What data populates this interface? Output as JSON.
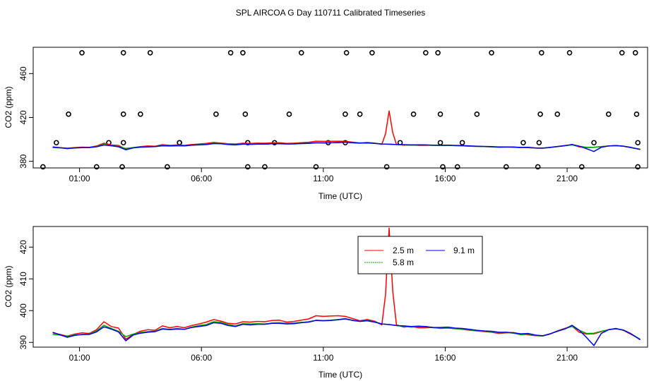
{
  "title": "SPL AIRCOA G  Day 110711  Calibrated Timeseries",
  "colors": {
    "red": "#ff0000",
    "green": "#00aa00",
    "blue": "#0000ee",
    "axis": "#000000"
  },
  "chart_data": [
    {
      "type": "scatter+line",
      "xlabel": "Time (UTC)",
      "ylabel": "CO2 (ppm)",
      "xlim": [
        -0.9,
        24.3
      ],
      "ylim": [
        374,
        484
      ],
      "x_ticks": [
        1,
        6,
        11,
        16,
        21
      ],
      "x_tick_labels": [
        "01:00",
        "06:00",
        "11:00",
        "16:00",
        "21:00"
      ],
      "y_ticks": [
        380,
        420,
        460
      ],
      "y_tick_labels": [
        "380",
        "420",
        "460"
      ],
      "circles": [
        [
          -0.5,
          375
        ],
        [
          0.05,
          397
        ],
        [
          0.55,
          423
        ],
        [
          1.1,
          479
        ],
        [
          1.7,
          375
        ],
        [
          2.2,
          397
        ],
        [
          2.75,
          375
        ],
        [
          2.8,
          397
        ],
        [
          2.8,
          423
        ],
        [
          2.8,
          479
        ],
        [
          3.5,
          423
        ],
        [
          3.9,
          479
        ],
        [
          4.6,
          375
        ],
        [
          5.1,
          397
        ],
        [
          5.1,
          397
        ],
        [
          6.6,
          423
        ],
        [
          7.2,
          479
        ],
        [
          7.7,
          479
        ],
        [
          7.8,
          423
        ],
        [
          7.9,
          375
        ],
        [
          7.9,
          397
        ],
        [
          8.6,
          375
        ],
        [
          9.0,
          397
        ],
        [
          9.6,
          423
        ],
        [
          10.1,
          479
        ],
        [
          10.7,
          375
        ],
        [
          11.2,
          397
        ],
        [
          11.9,
          397
        ],
        [
          11.9,
          423
        ],
        [
          11.95,
          479
        ],
        [
          12.5,
          423
        ],
        [
          13.0,
          479
        ],
        [
          13.6,
          375
        ],
        [
          14.15,
          397
        ],
        [
          14.7,
          423
        ],
        [
          15.2,
          479
        ],
        [
          15.7,
          479
        ],
        [
          15.8,
          423
        ],
        [
          15.8,
          397
        ],
        [
          15.9,
          375
        ],
        [
          16.5,
          375
        ],
        [
          16.7,
          397
        ],
        [
          17.3,
          423
        ],
        [
          17.9,
          479
        ],
        [
          18.5,
          375
        ],
        [
          19.2,
          397
        ],
        [
          19.8,
          375
        ],
        [
          19.85,
          397
        ],
        [
          19.9,
          423
        ],
        [
          19.95,
          479
        ],
        [
          20.6,
          423
        ],
        [
          21.1,
          479
        ],
        [
          21.6,
          375
        ],
        [
          22.1,
          397
        ],
        [
          22.7,
          423
        ],
        [
          23.25,
          479
        ],
        [
          23.8,
          479
        ],
        [
          23.85,
          423
        ],
        [
          23.9,
          397
        ],
        [
          23.9,
          375
        ]
      ]
    },
    {
      "type": "line",
      "xlabel": "Time (UTC)",
      "ylabel": "CO2 (ppm)",
      "xlim": [
        -0.9,
        24.3
      ],
      "ylim": [
        388.5,
        426.5
      ],
      "x_ticks": [
        1,
        6,
        11,
        16,
        21
      ],
      "x_tick_labels": [
        "01:00",
        "06:00",
        "11:00",
        "16:00",
        "21:00"
      ],
      "y_ticks": [
        390,
        400,
        410,
        420
      ],
      "y_tick_labels": [
        "390",
        "400",
        "410",
        "420"
      ],
      "legend": {
        "position": "top-center",
        "entries": [
          "2.5 m",
          "9.1 m",
          "5.8 m"
        ]
      }
    }
  ],
  "series": [
    {
      "name": "2.5 m",
      "color": "#ff0000",
      "x": [
        -0.1,
        0.2,
        0.5,
        0.8,
        1.1,
        1.4,
        1.7,
        2.0,
        2.3,
        2.6,
        2.9,
        3.2,
        3.5,
        3.8,
        4.1,
        4.4,
        4.7,
        5.0,
        5.3,
        5.6,
        5.9,
        6.2,
        6.5,
        6.8,
        7.1,
        7.4,
        7.7,
        8.0,
        8.3,
        8.6,
        8.9,
        9.2,
        9.5,
        9.8,
        10.1,
        10.4,
        10.7,
        11.0,
        11.3,
        11.6,
        11.9,
        12.2,
        12.5,
        12.8,
        13.1,
        13.4,
        13.55,
        13.7,
        13.85,
        14.0,
        14.3,
        14.6,
        14.9,
        15.2,
        15.5,
        15.8,
        16.1,
        16.4,
        16.7,
        17.0,
        17.3,
        17.6,
        17.9,
        18.2,
        18.5,
        18.8,
        19.1,
        19.4,
        19.7,
        20.0,
        20.3,
        20.6,
        20.9,
        21.2,
        21.5,
        21.8,
        22.1,
        22.4,
        22.7,
        23.0,
        23.3,
        23.6,
        24.0
      ],
      "y": [
        393,
        392.5,
        392,
        392.6,
        393,
        392.8,
        394,
        396.5,
        395,
        394.5,
        391,
        392.5,
        393.5,
        394,
        393.8,
        395.2,
        394.6,
        395,
        394.6,
        395.3,
        395.8,
        396.4,
        397.2,
        396.7,
        396,
        395.8,
        396.5,
        396.4,
        396.6,
        396.5,
        396.9,
        397,
        396.4,
        396.6,
        397,
        397.4,
        398.4,
        398.2,
        398.3,
        398.4,
        398.2,
        397.5,
        396.8,
        397.2,
        396.7,
        395.5,
        405,
        426,
        406,
        395.5,
        394.8,
        395,
        394.6,
        394.6,
        394.7,
        394.4,
        394.5,
        394.3,
        394.1,
        393.8,
        393.6,
        393.4,
        393.2,
        392.8,
        393,
        393.1,
        392.6,
        392.4,
        392.1,
        392,
        392.6,
        393.6,
        394.4,
        395.1,
        393.2,
        392.6,
        392.7,
        393.4,
        394,
        394.4,
        393.8,
        392.6,
        391
      ]
    },
    {
      "name": "5.8 m",
      "color": "#00aa00",
      "x": [
        -0.1,
        0.2,
        0.5,
        0.8,
        1.1,
        1.4,
        1.7,
        2.0,
        2.3,
        2.6,
        2.9,
        3.2,
        3.5,
        3.8,
        4.1,
        4.4,
        4.7,
        5.0,
        5.3,
        5.6,
        5.9,
        6.2,
        6.5,
        6.8,
        7.1,
        7.4,
        7.7,
        8.0,
        8.3,
        8.6,
        8.9,
        9.2,
        9.5,
        9.8,
        10.1,
        10.4,
        10.7,
        11.0,
        11.3,
        11.6,
        11.9,
        12.2,
        12.5,
        12.8,
        13.1,
        13.4,
        13.7,
        14.0,
        14.3,
        14.6,
        14.9,
        15.2,
        15.5,
        15.8,
        16.1,
        16.4,
        16.7,
        17.0,
        17.3,
        17.6,
        17.9,
        18.2,
        18.5,
        18.8,
        19.1,
        19.4,
        19.7,
        20.0,
        20.3,
        20.6,
        20.9,
        21.2,
        21.5,
        21.8,
        22.1,
        22.4,
        22.7,
        23.0,
        23.3,
        23.6,
        24.0
      ],
      "y": [
        392.5,
        392.3,
        391.8,
        392.4,
        392.4,
        392.6,
        393.6,
        395.4,
        394.4,
        393.5,
        391.8,
        392.6,
        393.1,
        393.4,
        393.5,
        394.4,
        394.1,
        394.4,
        394.1,
        394.8,
        395.3,
        395.6,
        396.5,
        396.3,
        395.6,
        395.2,
        395.9,
        395.8,
        395.9,
        395.8,
        396.1,
        396.2,
        396,
        396.1,
        396.3,
        396.5,
        397,
        396.9,
        397,
        397.2,
        397.5,
        397,
        396.6,
        396.9,
        396.5,
        395.8,
        395.6,
        395.3,
        395,
        394.8,
        394.9,
        394.9,
        394.6,
        394.5,
        394.6,
        394.3,
        394.2,
        393.9,
        393.6,
        393.5,
        393.3,
        393,
        393.1,
        392.9,
        392.4,
        392.6,
        392.2,
        392,
        392.7,
        393.5,
        394.3,
        395,
        393.8,
        392.8,
        392.9,
        393.5,
        394,
        394.3,
        393.9,
        392.8,
        391
      ]
    },
    {
      "name": "9.1 m",
      "color": "#0000ee",
      "x": [
        -0.1,
        0.2,
        0.5,
        0.8,
        1.1,
        1.4,
        1.7,
        2.0,
        2.3,
        2.6,
        2.9,
        3.2,
        3.5,
        3.8,
        4.1,
        4.4,
        4.7,
        5.0,
        5.3,
        5.6,
        5.9,
        6.2,
        6.5,
        6.8,
        7.1,
        7.4,
        7.7,
        8.0,
        8.3,
        8.6,
        8.9,
        9.2,
        9.5,
        9.8,
        10.1,
        10.4,
        10.7,
        11.0,
        11.3,
        11.6,
        11.9,
        12.2,
        12.5,
        12.8,
        13.1,
        13.4,
        13.7,
        14.0,
        14.3,
        14.6,
        14.9,
        15.2,
        15.5,
        15.8,
        16.1,
        16.4,
        16.7,
        17.0,
        17.3,
        17.6,
        17.9,
        18.2,
        18.5,
        18.8,
        19.1,
        19.4,
        19.7,
        20.0,
        20.3,
        20.6,
        20.9,
        21.2,
        21.5,
        21.8,
        22.1,
        22.4,
        22.7,
        23.0,
        23.3,
        23.6,
        24.0
      ],
      "y": [
        393.2,
        392.4,
        391.6,
        392.2,
        392.5,
        392.5,
        393.3,
        394.9,
        394.2,
        393.3,
        390.5,
        392.3,
        392.9,
        393.2,
        393.4,
        394.2,
        394,
        394.2,
        394.1,
        394.7,
        395,
        395.3,
        396.2,
        396,
        395.3,
        395,
        395.7,
        395.5,
        395.7,
        395.7,
        396,
        396,
        395.8,
        395.9,
        396.2,
        396.4,
        396.9,
        396.8,
        396.9,
        397.1,
        397.4,
        396.9,
        396.6,
        396.8,
        396.4,
        395.8,
        395.6,
        395.3,
        395.2,
        395,
        395.1,
        395,
        394.7,
        394.7,
        394.8,
        394.5,
        394.4,
        394.1,
        393.8,
        393.6,
        393.5,
        393.2,
        393.2,
        393,
        392.7,
        392.8,
        392.3,
        392.1,
        392.7,
        393.5,
        394.2,
        395.4,
        393.8,
        391.5,
        389,
        392.8,
        394,
        394.3,
        393.9,
        392.8,
        390.8
      ]
    }
  ]
}
